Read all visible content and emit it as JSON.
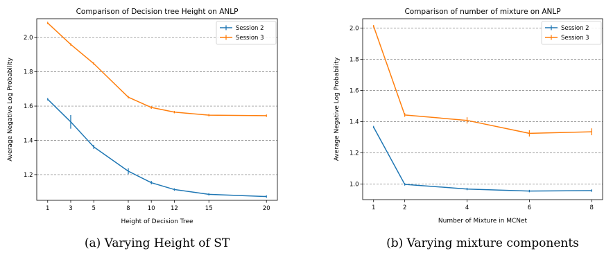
{
  "chart_data": [
    {
      "type": "line",
      "title": "Comparison of Decision tree Height on ANLP",
      "xlabel": "Height of Decision Tree",
      "ylabel": "Average Negative Log Probability",
      "caption": "(a) Varying Height of ST",
      "xlim": [
        0.05,
        20.95
      ],
      "ylim": [
        1.05,
        2.11
      ],
      "xticks": [
        1,
        3,
        5,
        8,
        10,
        12,
        15,
        20
      ],
      "yticks": [
        1.2,
        1.4,
        1.6,
        1.8,
        2.0
      ],
      "ytick_labels": [
        "1.2",
        "1.4",
        "1.6",
        "1.8",
        "2.0"
      ],
      "grid": "horizontal-dashed",
      "legend_position": "top-right",
      "series": [
        {
          "name": "Session 2",
          "color": "#1f77b4",
          "x": [
            1,
            3,
            5,
            8,
            10,
            12,
            15,
            20
          ],
          "y": [
            1.64,
            1.508,
            1.362,
            1.22,
            1.153,
            1.113,
            1.085,
            1.072
          ],
          "yerr": [
            0,
            0.04,
            0.012,
            0.017,
            0.01,
            0.004,
            0.003,
            0.002
          ]
        },
        {
          "name": "Session 3",
          "color": "#ff7f0e",
          "x": [
            1,
            3,
            5,
            8,
            10,
            12,
            15,
            20
          ],
          "y": [
            2.085,
            1.96,
            1.848,
            1.652,
            1.592,
            1.565,
            1.547,
            1.544
          ],
          "yerr": [
            0,
            0.003,
            0.003,
            0.003,
            0.008,
            0.003,
            0.002,
            0.002
          ]
        }
      ]
    },
    {
      "type": "line",
      "title": "Comparison of number of mixture on ANLP",
      "xlabel": "Number of Mixture in MCNet",
      "ylabel": "Average Negative Log Probability",
      "caption": "(b) Varying mixture components",
      "xlim": [
        0.65,
        8.35
      ],
      "ylim": [
        0.9,
        2.06
      ],
      "xticks": [
        1,
        2,
        4,
        6,
        8
      ],
      "yticks": [
        1.0,
        1.2,
        1.4,
        1.6,
        1.8,
        2.0
      ],
      "ytick_labels": [
        "1.0",
        "1.2",
        "1.4",
        "1.6",
        "1.8",
        "2.0"
      ],
      "grid": "horizontal-dashed",
      "legend_position": "top-right",
      "series": [
        {
          "name": "Session 2",
          "color": "#1f77b4",
          "x": [
            1,
            2,
            4,
            6,
            8
          ],
          "y": [
            1.365,
            0.998,
            0.968,
            0.955,
            0.958
          ],
          "yerr": [
            0,
            0.004,
            0.003,
            0.003,
            0.003
          ]
        },
        {
          "name": "Session 3",
          "color": "#ff7f0e",
          "x": [
            1,
            2,
            4,
            6,
            8
          ],
          "y": [
            2.012,
            1.443,
            1.408,
            1.325,
            1.335
          ],
          "yerr": [
            0,
            0.012,
            0.02,
            0.02,
            0.022
          ]
        }
      ]
    }
  ]
}
